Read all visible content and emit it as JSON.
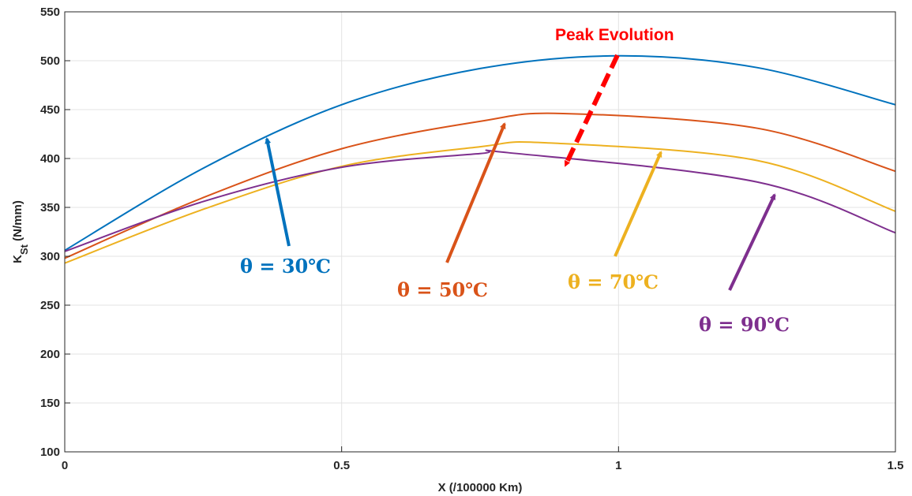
{
  "chart_data": {
    "type": "line",
    "xlabel": "X (/100000 Km)",
    "ylabel_main": "K",
    "ylabel_sub": "St",
    "ylabel_unit": " (N/mm)",
    "xlim": [
      0,
      1.5
    ],
    "ylim": [
      100,
      550
    ],
    "xticks": [
      0,
      0.5,
      1,
      1.5
    ],
    "xtick_labels": [
      "0",
      "0.5",
      "1",
      "1.5"
    ],
    "yticks": [
      100,
      150,
      200,
      250,
      300,
      350,
      400,
      450,
      500,
      550
    ],
    "ytick_labels": [
      "100",
      "150",
      "200",
      "250",
      "300",
      "350",
      "400",
      "450",
      "500",
      "550"
    ],
    "grid": true,
    "series": [
      {
        "label": "θ = 30℃",
        "color": "#0072bd",
        "x": [
          0,
          0.25,
          0.5,
          0.75,
          1.0,
          1.25,
          1.5
        ],
        "values": [
          306,
          390,
          455,
          492,
          505,
          493,
          455
        ]
      },
      {
        "label": "θ = 50℃",
        "color": "#d95319",
        "x": [
          0,
          0.25,
          0.5,
          0.75,
          0.9,
          1.25,
          1.5
        ],
        "values": [
          298,
          360,
          410,
          438,
          446,
          431,
          387
        ]
      },
      {
        "label": "θ = 70℃",
        "color": "#edb120",
        "x": [
          0,
          0.25,
          0.5,
          0.75,
          0.87,
          1.25,
          1.5
        ],
        "values": [
          293,
          348,
          392,
          412,
          416,
          398,
          346
        ]
      },
      {
        "label": "θ = 90℃",
        "color": "#7e2f8e",
        "x": [
          0,
          0.25,
          0.5,
          0.75,
          0.8,
          1.25,
          1.5
        ],
        "values": [
          305,
          356,
          391,
          405,
          406,
          376,
          324
        ]
      }
    ],
    "annotations": [
      {
        "text": "θ = 30℃",
        "color": "#0072bd"
      },
      {
        "text": "θ = 50℃",
        "color": "#d95319"
      },
      {
        "text": "θ = 70℃",
        "color": "#edb120"
      },
      {
        "text": "θ = 90℃",
        "color": "#7e2f8e"
      },
      {
        "text": "Peak Evolution",
        "color": "#ff0000"
      }
    ]
  }
}
